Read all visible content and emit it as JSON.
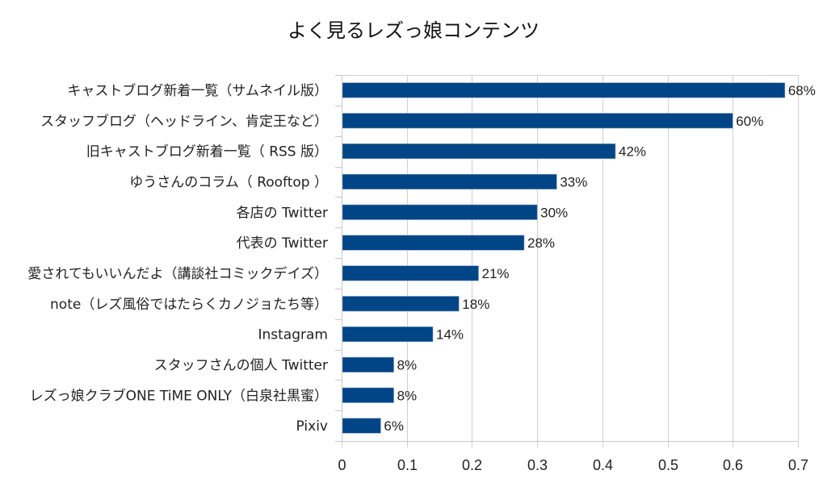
{
  "chart_data": {
    "type": "bar",
    "orientation": "horizontal",
    "title": "よく見るレズっ娘コンテンツ",
    "xlabel": "",
    "ylabel": "",
    "xlim": [
      0,
      0.7
    ],
    "xticks": [
      0,
      0.1,
      0.2,
      0.3,
      0.4,
      0.5,
      0.6,
      0.7
    ],
    "xtick_labels": [
      "0",
      "0.1",
      "0.2",
      "0.3",
      "0.4",
      "0.5",
      "0.6",
      "0.7"
    ],
    "grid": true,
    "legend": "none",
    "bar_color": "#004586",
    "categories": [
      "キャストブログ新着一覧（サムネイル版）",
      "スタッフブログ（ヘッドライン、肯定王など）",
      "旧キャストブログ新着一覧（ RSS 版）",
      "ゆうさんのコラム（ Rooftop ）",
      "各店の Twitter",
      "代表の Twitter",
      "愛されてもいいんだよ（講談社コミックデイズ）",
      "note（レズ風俗ではたらくカノジョたち等）",
      "Instagram",
      "スタッフさんの個人 Twitter",
      "レズっ娘クラブONE TiME ONLY（白泉社黒蜜）",
      "Pixiv"
    ],
    "values": [
      0.68,
      0.6,
      0.42,
      0.33,
      0.3,
      0.28,
      0.21,
      0.18,
      0.14,
      0.08,
      0.08,
      0.06
    ],
    "data_labels": [
      "68%",
      "60%",
      "42%",
      "33%",
      "30%",
      "28%",
      "21%",
      "18%",
      "14%",
      "8%",
      "8%",
      "6%"
    ]
  }
}
